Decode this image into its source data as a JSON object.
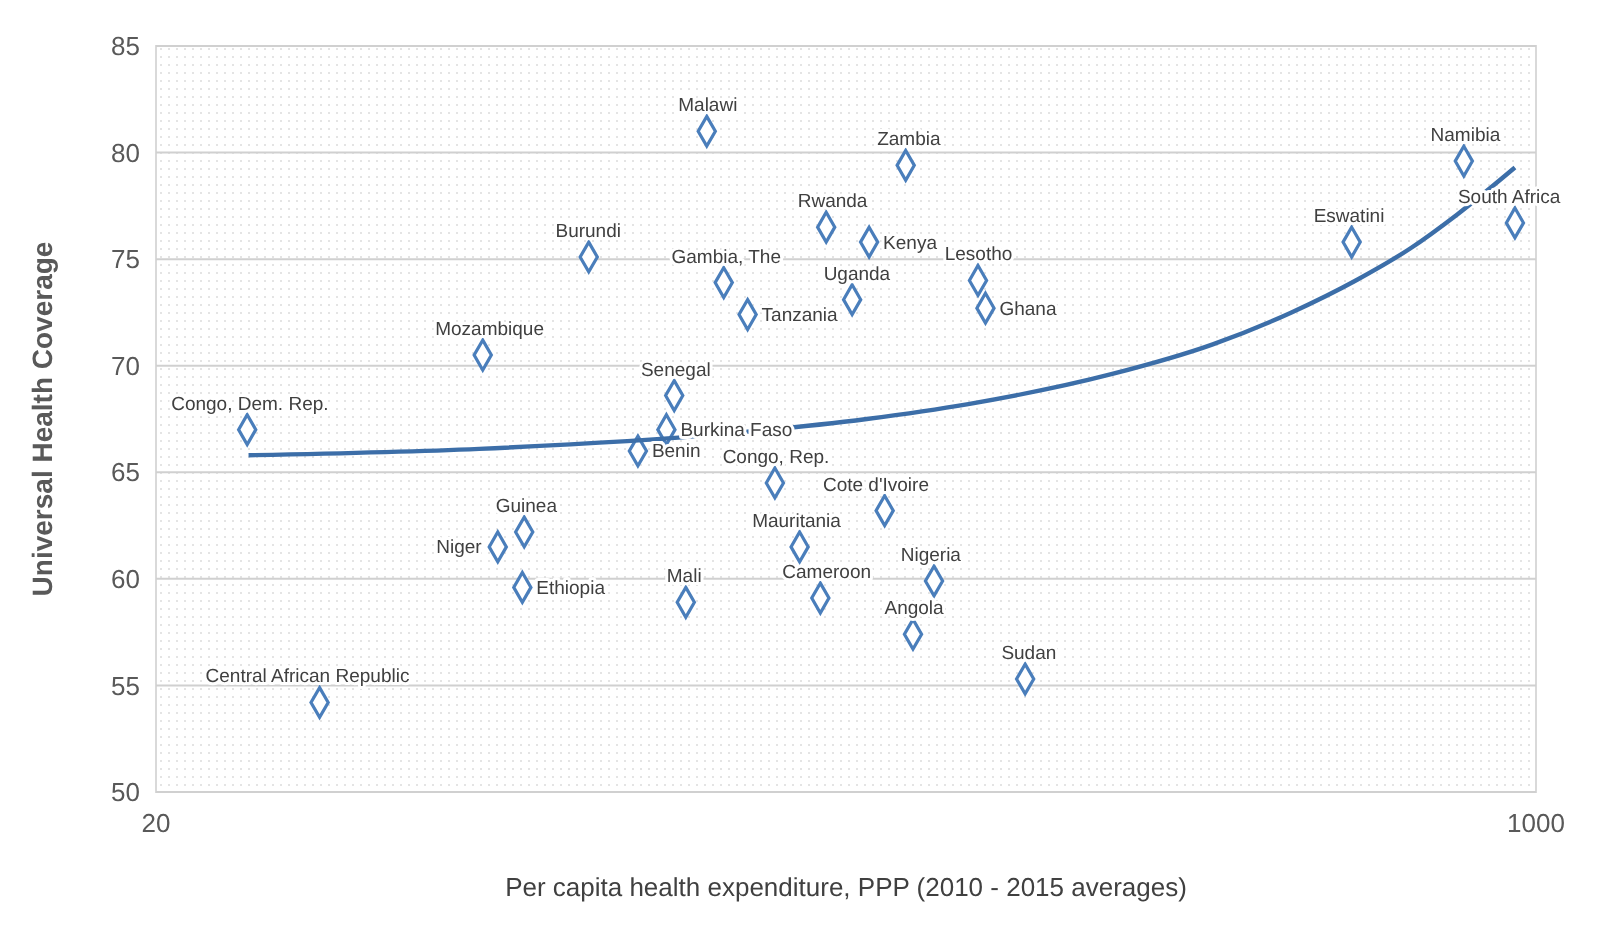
{
  "chart_data": {
    "type": "scatter",
    "xlabel": "Per capita health expenditure, PPP (2010 - 2015 averages)",
    "ylabel": "Universal Health Coverage",
    "log": "x",
    "xlim": [
      20,
      1000
    ],
    "xticks": [
      20,
      1000
    ],
    "ylim": [
      50,
      85
    ],
    "yticks": [
      50,
      55,
      60,
      65,
      70,
      75,
      80,
      85
    ],
    "grid": "y",
    "marker": "diamond",
    "series": [
      {
        "color": "#4a7ebb",
        "x": [
          25.9,
          31.8,
          50.5,
          68.2,
          52.7,
          56.8,
          56.5,
          89.8,
          86.9,
          85.0,
          78.4,
          95.3,
          100,
          107,
          115.6,
          124,
          131.5,
          157.8,
          181.5,
          171,
          235,
          167.5,
          133.7,
          151,
          143.9,
          205.6,
          210,
          593,
          815,
          942
        ],
        "values": [
          67.0,
          54.2,
          70.5,
          75.1,
          61.5,
          62.2,
          59.6,
          58.9,
          68.6,
          67.0,
          66.0,
          81.0,
          73.9,
          72.4,
          64.5,
          61.5,
          59.1,
          63.2,
          59.9,
          57.4,
          55.3,
          79.4,
          76.5,
          75.8,
          73.1,
          74.0,
          72.7,
          75.8,
          79.6,
          76.7
        ]
      },
      {
        "type": "line",
        "color": "#3c6ea8",
        "marker": "none",
        "line_style": "solid",
        "x": [
          26,
          50,
          100,
          150,
          200,
          300,
          400,
          500,
          600,
          700,
          800,
          942
        ],
        "values": [
          65.8,
          66.1,
          66.8,
          67.5,
          68.2,
          69.6,
          71.0,
          72.5,
          74.0,
          75.5,
          77.1,
          79.3
        ]
      }
    ],
    "annotations": [
      {
        "text": "Congo, Dem. Rep.",
        "x": 25.9,
        "y": 67.0
      },
      {
        "text": "Central African Republic",
        "x": 31.8,
        "y": 54.2
      },
      {
        "text": "Mozambique",
        "x": 50.5,
        "y": 70.5
      },
      {
        "text": "Burundi",
        "x": 68.2,
        "y": 75.1
      },
      {
        "text": "Niger",
        "x": 52.7,
        "y": 61.5
      },
      {
        "text": "Guinea",
        "x": 56.8,
        "y": 62.2
      },
      {
        "text": "Ethiopia",
        "x": 56.5,
        "y": 59.6
      },
      {
        "text": "Mali",
        "x": 89.8,
        "y": 58.9
      },
      {
        "text": "Senegal",
        "x": 86.9,
        "y": 68.6
      },
      {
        "text": "Burkina Faso",
        "x": 85.0,
        "y": 67.0
      },
      {
        "text": "Benin",
        "x": 78.4,
        "y": 66.0
      },
      {
        "text": "Malawi",
        "x": 95.3,
        "y": 81.0
      },
      {
        "text": "Gambia, The",
        "x": 100,
        "y": 73.9
      },
      {
        "text": "Tanzania",
        "x": 107,
        "y": 72.4
      },
      {
        "text": "Congo, Rep.",
        "x": 115.6,
        "y": 64.5
      },
      {
        "text": "Mauritania",
        "x": 124,
        "y": 61.5
      },
      {
        "text": "Cameroon",
        "x": 131.5,
        "y": 59.1
      },
      {
        "text": "Cote d'Ivoire",
        "x": 157.8,
        "y": 63.2
      },
      {
        "text": "Nigeria",
        "x": 181.5,
        "y": 59.9
      },
      {
        "text": "Angola",
        "x": 171,
        "y": 57.4
      },
      {
        "text": "Sudan",
        "x": 235,
        "y": 55.3
      },
      {
        "text": "Zambia",
        "x": 167.5,
        "y": 79.4
      },
      {
        "text": "Rwanda",
        "x": 133.7,
        "y": 76.5
      },
      {
        "text": "Kenya",
        "x": 151,
        "y": 75.8
      },
      {
        "text": "Uganda",
        "x": 143.9,
        "y": 73.1
      },
      {
        "text": "Lesotho",
        "x": 205.6,
        "y": 74.0
      },
      {
        "text": "Ghana",
        "x": 210,
        "y": 72.7
      },
      {
        "text": "Eswatini",
        "x": 593,
        "y": 75.8
      },
      {
        "text": "Namibia",
        "x": 815,
        "y": 79.6
      },
      {
        "text": "South Africa",
        "x": 942,
        "y": 76.7
      }
    ]
  }
}
